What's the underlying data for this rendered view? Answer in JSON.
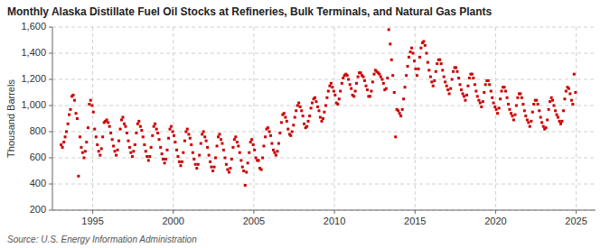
{
  "chart_data": {
    "type": "scatter",
    "title": "Monthly Alaska Distillate Fuel Oil Stocks at Refineries, Bulk Terminals, and Natural Gas Plants",
    "ylabel": "Thousand Barrels",
    "source": "Source: U.S. Energy Information Administration",
    "color": "#cc0000",
    "marker": "square",
    "grid": true,
    "xlim": [
      1992.5,
      2026.2
    ],
    "xticks": [
      1995,
      2000,
      2005,
      2010,
      2015,
      2020,
      2025
    ],
    "ylim": [
      200,
      1600
    ],
    "yticks": [
      200,
      400,
      600,
      800,
      {
        "value": 1000,
        "label": "1,000"
      },
      {
        "value": 1200,
        "label": "1,200"
      },
      {
        "value": 1400,
        "label": "1,400"
      },
      {
        "value": 1600,
        "label": "1,600"
      }
    ],
    "x": [
      1993.04,
      1993.12,
      1993.21,
      1993.29,
      1993.37,
      1993.46,
      1993.54,
      1993.62,
      1993.71,
      1993.79,
      1993.87,
      1993.96,
      1994.04,
      1994.12,
      1994.21,
      1994.29,
      1994.37,
      1994.46,
      1994.54,
      1994.62,
      1994.71,
      1994.79,
      1994.87,
      1994.96,
      1995.04,
      1995.12,
      1995.21,
      1995.29,
      1995.37,
      1995.46,
      1995.54,
      1995.62,
      1995.71,
      1995.79,
      1995.87,
      1995.96,
      1996.04,
      1996.12,
      1996.21,
      1996.29,
      1996.37,
      1996.46,
      1996.54,
      1996.62,
      1996.71,
      1996.79,
      1996.87,
      1996.96,
      1997.04,
      1997.12,
      1997.21,
      1997.29,
      1997.37,
      1997.46,
      1997.54,
      1997.62,
      1997.71,
      1997.79,
      1997.87,
      1997.96,
      1998.04,
      1998.12,
      1998.21,
      1998.29,
      1998.37,
      1998.46,
      1998.54,
      1998.62,
      1998.71,
      1998.79,
      1998.87,
      1998.96,
      1999.04,
      1999.12,
      1999.21,
      1999.29,
      1999.37,
      1999.46,
      1999.54,
      1999.62,
      1999.71,
      1999.79,
      1999.87,
      1999.96,
      2000.04,
      2000.12,
      2000.21,
      2000.29,
      2000.37,
      2000.46,
      2000.54,
      2000.62,
      2000.71,
      2000.79,
      2000.87,
      2000.96,
      2001.04,
      2001.12,
      2001.21,
      2001.29,
      2001.37,
      2001.46,
      2001.54,
      2001.62,
      2001.71,
      2001.79,
      2001.87,
      2001.96,
      2002.04,
      2002.12,
      2002.21,
      2002.29,
      2002.37,
      2002.46,
      2002.54,
      2002.62,
      2002.71,
      2002.79,
      2002.87,
      2002.96,
      2003.04,
      2003.12,
      2003.21,
      2003.29,
      2003.37,
      2003.46,
      2003.54,
      2003.62,
      2003.71,
      2003.79,
      2003.87,
      2003.96,
      2004.04,
      2004.12,
      2004.21,
      2004.29,
      2004.37,
      2004.46,
      2004.54,
      2004.62,
      2004.71,
      2004.79,
      2004.87,
      2004.96,
      2005.04,
      2005.12,
      2005.21,
      2005.29,
      2005.37,
      2005.46,
      2005.54,
      2005.62,
      2005.71,
      2005.79,
      2005.87,
      2005.96,
      2006.04,
      2006.12,
      2006.21,
      2006.29,
      2006.37,
      2006.46,
      2006.54,
      2006.62,
      2006.71,
      2006.79,
      2006.87,
      2006.96,
      2007.04,
      2007.12,
      2007.21,
      2007.29,
      2007.37,
      2007.46,
      2007.54,
      2007.62,
      2007.71,
      2007.79,
      2007.87,
      2007.96,
      2008.04,
      2008.12,
      2008.21,
      2008.29,
      2008.37,
      2008.46,
      2008.54,
      2008.62,
      2008.71,
      2008.79,
      2008.87,
      2008.96,
      2009.04,
      2009.12,
      2009.21,
      2009.29,
      2009.37,
      2009.46,
      2009.54,
      2009.62,
      2009.71,
      2009.79,
      2009.87,
      2009.96,
      2010.04,
      2010.12,
      2010.21,
      2010.29,
      2010.37,
      2010.46,
      2010.54,
      2010.62,
      2010.71,
      2010.79,
      2010.87,
      2010.96,
      2011.04,
      2011.12,
      2011.21,
      2011.29,
      2011.37,
      2011.46,
      2011.54,
      2011.62,
      2011.71,
      2011.79,
      2011.87,
      2011.96,
      2012.04,
      2012.12,
      2012.21,
      2012.29,
      2012.37,
      2012.46,
      2012.54,
      2012.62,
      2012.71,
      2012.79,
      2012.87,
      2012.96,
      2013.04,
      2013.12,
      2013.21,
      2013.29,
      2013.37,
      2013.46,
      2013.54,
      2013.62,
      2013.71,
      2013.79,
      2013.87,
      2013.96,
      2014.04,
      2014.12,
      2014.21,
      2014.29,
      2014.37,
      2014.46,
      2014.54,
      2014.62,
      2014.71,
      2014.79,
      2014.87,
      2014.96,
      2015.04,
      2015.12,
      2015.21,
      2015.29,
      2015.37,
      2015.46,
      2015.54,
      2015.62,
      2015.71,
      2015.79,
      2015.87,
      2015.96,
      2016.04,
      2016.12,
      2016.21,
      2016.29,
      2016.37,
      2016.46,
      2016.54,
      2016.62,
      2016.71,
      2016.79,
      2016.87,
      2016.96,
      2017.04,
      2017.12,
      2017.21,
      2017.29,
      2017.37,
      2017.46,
      2017.54,
      2017.62,
      2017.71,
      2017.79,
      2017.87,
      2017.96,
      2018.04,
      2018.12,
      2018.21,
      2018.29,
      2018.37,
      2018.46,
      2018.54,
      2018.62,
      2018.71,
      2018.79,
      2018.87,
      2018.96,
      2019.04,
      2019.12,
      2019.21,
      2019.29,
      2019.37,
      2019.46,
      2019.54,
      2019.62,
      2019.71,
      2019.79,
      2019.87,
      2019.96,
      2020.04,
      2020.12,
      2020.21,
      2020.29,
      2020.37,
      2020.46,
      2020.54,
      2020.62,
      2020.71,
      2020.79,
      2020.87,
      2020.96,
      2021.04,
      2021.12,
      2021.21,
      2021.29,
      2021.37,
      2021.46,
      2021.54,
      2021.62,
      2021.71,
      2021.79,
      2021.87,
      2021.96,
      2022.04,
      2022.12,
      2022.21,
      2022.29,
      2022.37,
      2022.46,
      2022.54,
      2022.62,
      2022.71,
      2022.79,
      2022.87,
      2022.96,
      2023.04,
      2023.12,
      2023.21,
      2023.29,
      2023.37,
      2023.46,
      2023.54,
      2023.62,
      2023.71,
      2023.79,
      2023.87,
      2023.96,
      2024.04,
      2024.12,
      2024.21,
      2024.29,
      2024.37,
      2024.46,
      2024.54,
      2024.62,
      2024.71,
      2024.79,
      2024.87,
      2024.96
    ],
    "values": [
      700,
      680,
      720,
      760,
      800,
      860,
      930,
      970,
      1070,
      1080,
      1040,
      940,
      900,
      460,
      760,
      680,
      640,
      600,
      650,
      720,
      830,
      1010,
      1040,
      1000,
      950,
      820,
      760,
      700,
      650,
      620,
      670,
      760,
      870,
      880,
      890,
      870,
      840,
      790,
      740,
      690,
      650,
      620,
      660,
      730,
      820,
      890,
      910,
      860,
      840,
      790,
      730,
      680,
      640,
      610,
      650,
      700,
      790,
      860,
      880,
      840,
      810,
      760,
      700,
      650,
      610,
      580,
      610,
      680,
      770,
      840,
      860,
      820,
      790,
      740,
      680,
      630,
      590,
      560,
      590,
      660,
      750,
      820,
      840,
      800,
      770,
      720,
      660,
      610,
      570,
      540,
      570,
      640,
      730,
      800,
      820,
      780,
      750,
      700,
      640,
      590,
      550,
      520,
      550,
      620,
      710,
      780,
      800,
      760,
      730,
      680,
      620,
      570,
      530,
      500,
      530,
      600,
      690,
      760,
      780,
      740,
      710,
      660,
      600,
      550,
      510,
      490,
      520,
      590,
      680,
      740,
      760,
      720,
      690,
      640,
      580,
      530,
      500,
      390,
      490,
      560,
      640,
      720,
      740,
      700,
      660,
      600,
      580,
      580,
      520,
      510,
      600,
      690,
      760,
      820,
      830,
      800,
      770,
      710,
      660,
      640,
      620,
      650,
      710,
      790,
      870,
      930,
      940,
      910,
      880,
      820,
      780,
      770,
      800,
      850,
      910,
      960,
      1000,
      1020,
      990,
      960,
      920,
      860,
      830,
      840,
      880,
      920,
      980,
      1020,
      1050,
      1060,
      1030,
      990,
      960,
      910,
      880,
      900,
      950,
      1000,
      1060,
      1110,
      1150,
      1170,
      1140,
      1110,
      1080,
      1020,
      1010,
      1050,
      1110,
      1170,
      1210,
      1230,
      1240,
      1230,
      1200,
      1160,
      1130,
      1080,
      1070,
      1110,
      1170,
      1220,
      1250,
      1250,
      1230,
      1220,
      1190,
      1150,
      1120,
      1070,
      1070,
      1110,
      1180,
      1240,
      1270,
      1260,
      1250,
      1240,
      1220,
      1200,
      1170,
      1120,
      1130,
      1210,
      1580,
      1470,
      1350,
      1230,
      1100,
      760,
      970,
      960,
      940,
      920,
      970,
      1050,
      1140,
      1230,
      1300,
      1370,
      1410,
      1440,
      1400,
      1340,
      1280,
      1230,
      1280,
      1370,
      1440,
      1480,
      1490,
      1460,
      1400,
      1330,
      1270,
      1220,
      1180,
      1150,
      1190,
      1260,
      1320,
      1350,
      1350,
      1320,
      1270,
      1220,
      1180,
      1150,
      1120,
      1090,
      1130,
      1200,
      1260,
      1290,
      1290,
      1260,
      1210,
      1160,
      1120,
      1090,
      1070,
      1040,
      1080,
      1150,
      1210,
      1240,
      1240,
      1210,
      1160,
      1110,
      1070,
      1040,
      1020,
      990,
      1030,
      1100,
      1160,
      1190,
      1190,
      1160,
      1110,
      1060,
      1020,
      990,
      970,
      940,
      980,
      1050,
      1110,
      1140,
      1140,
      1110,
      1060,
      1010,
      970,
      940,
      920,
      890,
      930,
      1000,
      1060,
      1090,
      1090,
      1060,
      1010,
      960,
      920,
      890,
      870,
      840,
      880,
      950,
      1010,
      1040,
      1040,
      1010,
      960,
      910,
      870,
      840,
      820,
      830,
      890,
      970,
      1030,
      1060,
      1040,
      1000,
      960,
      930,
      910,
      880,
      860,
      880,
      960,
      1050,
      1110,
      1140,
      1130,
      1090,
      1040,
      1010,
      1240,
      1100
    ]
  }
}
